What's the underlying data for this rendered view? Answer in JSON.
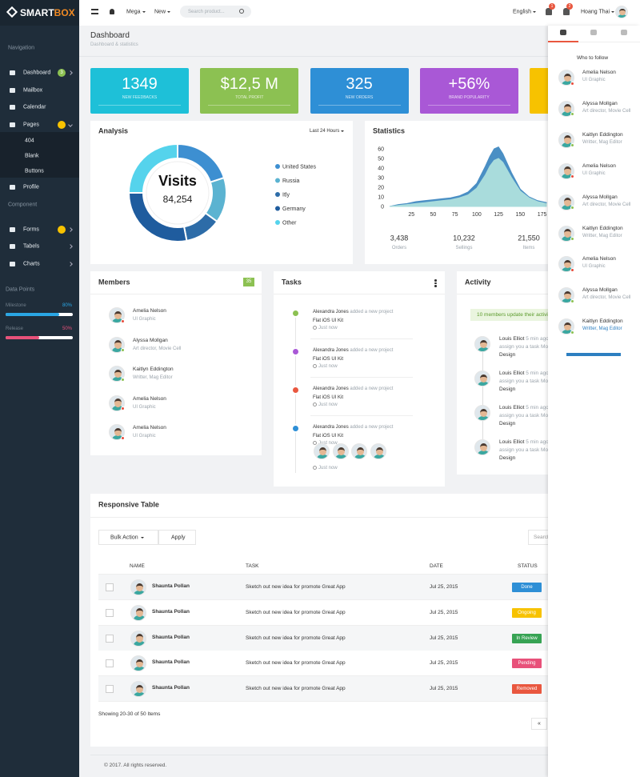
{
  "brand": {
    "part1": "SMART",
    "part2": "BOX"
  },
  "topbar": {
    "menus": [
      "Mega",
      "New"
    ],
    "search_placeholder": "Search product...",
    "language": "English",
    "alerts": [
      "1",
      "2"
    ],
    "user": "Hoang Thai"
  },
  "sidebar": {
    "sections": [
      {
        "title": "Navigation",
        "items": [
          {
            "label": "Dashboard",
            "badge": "3",
            "badge_color": "#8cc152"
          },
          {
            "label": "Mailbox"
          },
          {
            "label": "Calendar"
          },
          {
            "label": "Pages",
            "badge_color": "#f7c200",
            "children": [
              "404",
              "Blank",
              "Buttons"
            ]
          },
          {
            "label": "Profile"
          }
        ]
      },
      {
        "title": "Component",
        "items": [
          {
            "label": "Forms",
            "badge_color": "#f7c200"
          },
          {
            "label": "Tabels"
          },
          {
            "label": "Charts"
          }
        ]
      }
    ],
    "data_points": {
      "title": "Data Points",
      "names": [
        "Milestone",
        "Release"
      ],
      "values": [
        80,
        50
      ],
      "value_labels": [
        "80%",
        "50%"
      ],
      "colors": [
        "#2aa6e4",
        "#e8517a"
      ]
    }
  },
  "header": {
    "title": "Dashboard",
    "subtitle": "Dashboard & statistics"
  },
  "cards": [
    {
      "value": "1349",
      "label": "NEW FEEDBACKS",
      "color": "#1ec0d8"
    },
    {
      "value": "$12,5 M",
      "label": "TOTAL PROFIT",
      "color": "#8cc152"
    },
    {
      "value": "325",
      "label": "NEW ORDERS",
      "color": "#2e8fd6"
    },
    {
      "value": "+56%",
      "label": "BRAND POPULARITY",
      "color": "#a958d6"
    }
  ],
  "chart_data": [
    {
      "type": "pie",
      "title": "Analysis",
      "filter": "Last 24 Hours",
      "center_title": "Visits",
      "center_value": "84,254",
      "categories": [
        "United States",
        "Russia",
        "Itly",
        "Germany",
        "Other"
      ],
      "values": [
        20,
        15,
        12,
        28,
        25
      ],
      "colors": [
        "#3d8fd1",
        "#5bb3d1",
        "#2d6ca8",
        "#1f5c9e",
        "#55d3ec"
      ]
    },
    {
      "type": "area",
      "title": "Statistics",
      "x": [
        0,
        10,
        20,
        30,
        40,
        50,
        60,
        70,
        80,
        90,
        100,
        110,
        115,
        120,
        125,
        130,
        140,
        150,
        160,
        170,
        180
      ],
      "series": [
        {
          "color": "#4a8fc4",
          "values": [
            0,
            2,
            3,
            5,
            6,
            7,
            8,
            9,
            11,
            15,
            24,
            42,
            52,
            60,
            62,
            55,
            35,
            18,
            10,
            6,
            4
          ]
        },
        {
          "color": "#a9dcdc",
          "values": [
            0,
            1,
            2,
            3,
            4,
            5,
            6,
            7,
            9,
            12,
            19,
            33,
            42,
            48,
            50,
            46,
            30,
            16,
            9,
            5,
            3
          ]
        }
      ],
      "xlim": [
        0,
        180
      ],
      "ylim": [
        0,
        65
      ],
      "xticks": [
        25,
        50,
        75,
        100,
        125,
        150,
        175
      ],
      "yticks": [
        0,
        10,
        20,
        30,
        40,
        50,
        60
      ],
      "summary": [
        {
          "value": "3,438",
          "label": "Orders"
        },
        {
          "value": "10,232",
          "label": "Sellings"
        },
        {
          "value": "21,550",
          "label": "Items"
        }
      ]
    }
  ],
  "follow": {
    "title": "Who to follow",
    "people": [
      {
        "name": "Amelia Nelson",
        "role": "UI Graphic",
        "status_color": "#e74c3c"
      },
      {
        "name": "Alyssa Mollgan",
        "role": "Art director, Movie Cell",
        "status_color": "#8cc152"
      },
      {
        "name": "Kaitlyn Eddington",
        "role": "Writter, Mag Editor",
        "status_color": "#8cc152"
      },
      {
        "name": "Amelia Nelson",
        "role": "UI Graphic",
        "status_color": "#e74c3c"
      },
      {
        "name": "Alyssa Mollgan",
        "role": "Art director, Movie Cell",
        "status_color": "#8cc152"
      },
      {
        "name": "Kaitlyn Eddington",
        "role": "Writter, Mag Editor",
        "status_color": "#8cc152"
      },
      {
        "name": "Amelia Nelson",
        "role": "UI Graphic",
        "status_color": "#e74c3c"
      },
      {
        "name": "Alyssa Mollgan",
        "role": "Art director, Movie Cell",
        "status_color": "#8cc152"
      },
      {
        "name": "Kaitlyn Eddington",
        "role": "Writter, Mag Editor",
        "status_color": "#8cc152",
        "role_color": "#2d7fc1"
      }
    ]
  },
  "members": {
    "title": "Members",
    "count": "35",
    "people": [
      {
        "name": "Amelia Nelson",
        "role": "UI Graphic",
        "status_color": "#e74c3c"
      },
      {
        "name": "Alyssa Mollgan",
        "role": "Art director, Movie Cell",
        "status_color": "#8cc152"
      },
      {
        "name": "Kaitlyn Eddington",
        "role": "Writter, Mag Editor",
        "status_color": "#8cc152"
      },
      {
        "name": "Amelia Nelson",
        "role": "UI Graphic",
        "status_color": "#e74c3c"
      },
      {
        "name": "Amelia Nelson",
        "role": "UI Graphic",
        "status_color": "#e74c3c"
      }
    ]
  },
  "tasks": {
    "title": "Tasks",
    "items": [
      {
        "author": "Alexandra Jones",
        "action": "added a new project",
        "project": "Flat iOS UI Kit",
        "time": "Just now",
        "color": "#8cc152"
      },
      {
        "author": "Alexandra Jones",
        "action": "added a new project",
        "project": "Flat iOS UI Kit",
        "time": "Just now",
        "color": "#a958d6"
      },
      {
        "author": "Alexandra Jones",
        "action": "added a new project",
        "project": "Flat iOS UI Kit",
        "time": "Just now",
        "color": "#e9573f"
      },
      {
        "author": "Alexandra Jones",
        "action": "added a new project",
        "project": "Flat iOS UI Kit",
        "time": "Just now",
        "color": "#2e8fd6"
      }
    ]
  },
  "activity": {
    "title": "Activity",
    "notice": "10 members update their activity",
    "items": [
      {
        "author": "Louis Elliot",
        "time": "5 min ago",
        "text": "assign you a task Mockup",
        "tag": "Design"
      },
      {
        "author": "Louis Elliot",
        "time": "5 min ago",
        "text": "assign you a task Mockup",
        "tag": "Design"
      },
      {
        "author": "Louis Elliot",
        "time": "5 min ago",
        "text": "assign you a task Mockup",
        "tag": "Design"
      },
      {
        "author": "Louis Elliot",
        "time": "5 min ago",
        "text": "assign you a task Mockup",
        "tag": "Design"
      }
    ]
  },
  "table": {
    "title": "Responsive Table",
    "bulk": "Bulk Action",
    "apply": "Apply",
    "search": "Search",
    "headers": [
      "NAME",
      "TASK",
      "DATE",
      "STATUS"
    ],
    "rows": [
      {
        "name": "Shaunta Pollan",
        "task": "Sketch out new idea for promote Great App",
        "date": "Jul 25, 2015",
        "status": "Done",
        "status_color": "#2e8fd6"
      },
      {
        "name": "Shaunta Pollan",
        "task": "Sketch out new idea for promote Great App",
        "date": "Jul 25, 2015",
        "status": "Ongoing",
        "status_color": "#f7c200"
      },
      {
        "name": "Shaunta Pollan",
        "task": "Sketch out new idea for promote Great App",
        "date": "Jul 25, 2015",
        "status": "In Review",
        "status_color": "#37a354"
      },
      {
        "name": "Shaunta Pollan",
        "task": "Sketch out new idea for promote Great App",
        "date": "Jul 25, 2015",
        "status": "Pending",
        "status_color": "#e8517a"
      },
      {
        "name": "Shaunta Pollan",
        "task": "Sketch out new idea for promote Great App",
        "date": "Jul 25, 2015",
        "status": "Removed",
        "status_color": "#e9573f"
      }
    ],
    "info": "Showing 20-30 of 50 Items",
    "pager": "«"
  },
  "footer": "© 2017. All rights reserved."
}
